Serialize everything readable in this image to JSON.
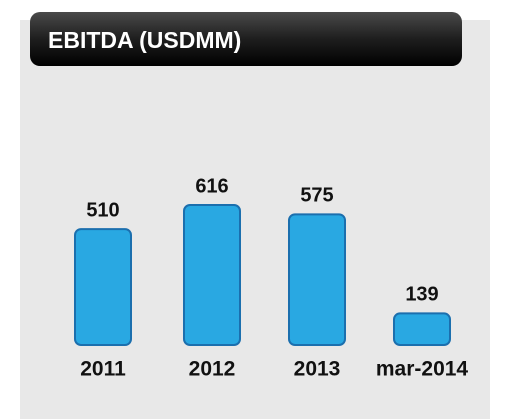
{
  "chart_data": {
    "type": "bar",
    "title": "EBITDA (USDMM)",
    "categories": [
      "2011",
      "2012",
      "2013",
      "mar-2014"
    ],
    "values": [
      510,
      616,
      575,
      139
    ],
    "color": "#29a8e2"
  }
}
